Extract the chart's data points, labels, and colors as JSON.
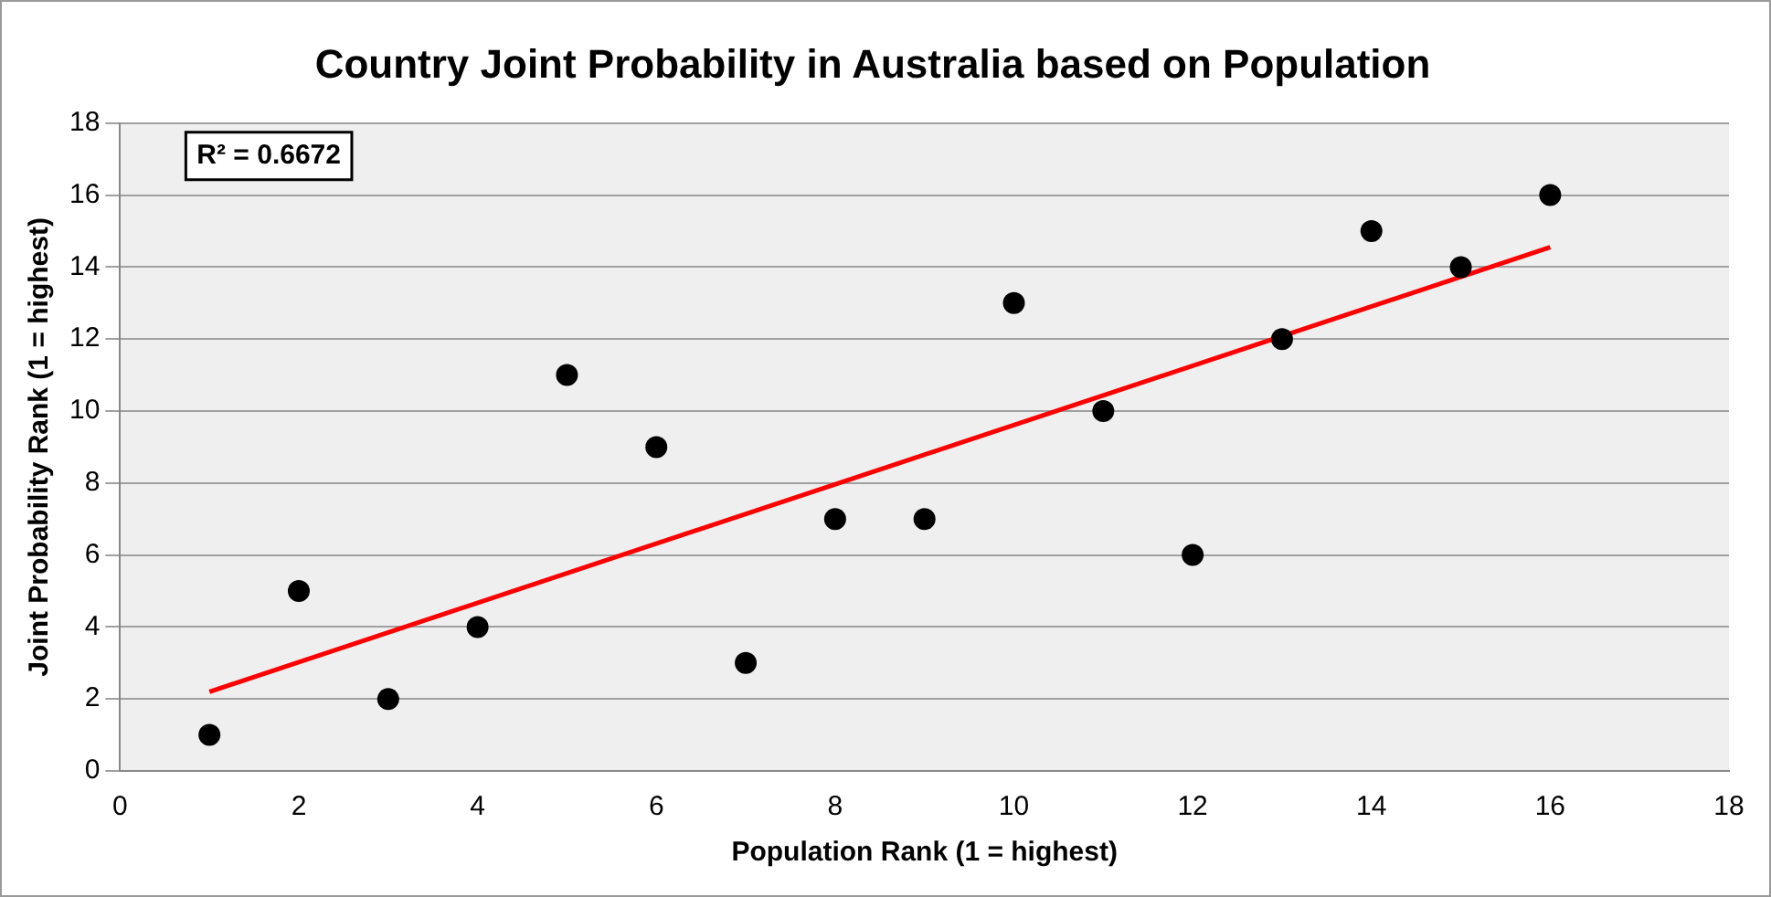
{
  "chart_data": {
    "type": "scatter",
    "title": "Country Joint Probability in Australia based on Population",
    "xlabel": "Population Rank (1 = highest)",
    "ylabel": "Joint Probability Rank (1 = highest)",
    "annotations": [
      "R² = 0.6672"
    ],
    "xlim": [
      0,
      18
    ],
    "xticks": [
      0,
      2,
      4,
      6,
      8,
      10,
      12,
      14,
      16,
      18
    ],
    "ylim": [
      0,
      18
    ],
    "yticks": [
      0,
      2,
      4,
      6,
      8,
      10,
      12,
      14,
      16,
      18
    ],
    "grid": "y",
    "series": [
      {
        "type": "scatter",
        "color": "#000000",
        "marker": "circle",
        "x": [
          1,
          2,
          3,
          4,
          5,
          6,
          7,
          8,
          9,
          10,
          11,
          12,
          13,
          14,
          15,
          16
        ],
        "values": [
          1,
          5,
          2,
          4,
          11,
          9,
          3,
          7,
          7,
          13,
          10,
          6,
          12,
          15,
          14,
          16
        ]
      },
      {
        "type": "line",
        "color": "#ff0000",
        "marker": "none",
        "line_style": "solid",
        "x": [
          1,
          16
        ],
        "values": [
          2.2,
          14.55
        ]
      }
    ]
  }
}
